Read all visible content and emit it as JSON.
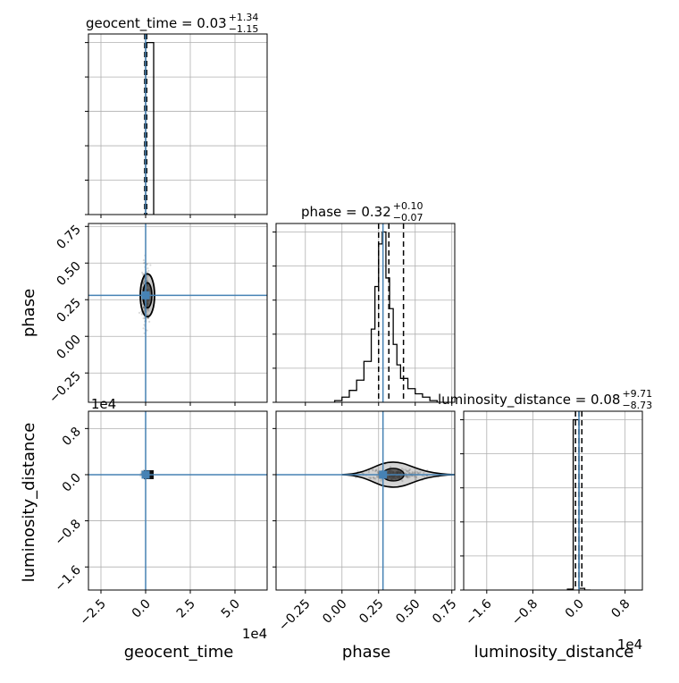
{
  "chart_data": {
    "type": "corner",
    "parameters": [
      "geocent_time",
      "phase",
      "luminosity_distance"
    ],
    "truth_color": "#4682b4",
    "contour_color": "#000000",
    "diagonal_titles": [
      {
        "name": "geocent_time = 0.03",
        "sup": "+1.34",
        "sub": "−1.15"
      },
      {
        "name": "phase = 0.32",
        "sup": "+0.10",
        "sub": "−0.07"
      },
      {
        "name": "luminosity_distance = 0.08",
        "sup": "+9.71",
        "sub": "−8.73"
      }
    ],
    "axis_labels": {
      "x": [
        "geocent_time",
        "phase",
        "luminosity_distance"
      ],
      "y": [
        "phase",
        "luminosity_distance"
      ]
    },
    "offset_labels": {
      "geocent_x": "1e4",
      "lumdist_y": "1e4",
      "lumdist_x": "1e4"
    },
    "ticks": {
      "geocent_time": {
        "values": [
          -2.5,
          0.0,
          2.5,
          5.0
        ],
        "labels": [
          "−2.5",
          "0.0",
          "2.5",
          "5.0"
        ],
        "range": [
          -3.2,
          6.8
        ]
      },
      "phase": {
        "values": [
          -0.25,
          0.0,
          0.25,
          0.5,
          0.75
        ],
        "labels": [
          "−0.25",
          "0.00",
          "0.25",
          "0.50",
          "0.75"
        ],
        "range": [
          -0.45,
          0.77
        ]
      },
      "luminosity_distance": {
        "values": [
          -1.6,
          -0.8,
          0.0,
          0.8
        ],
        "labels": [
          "−1.6",
          "−0.8",
          "0.0",
          "0.8"
        ],
        "range": [
          -2.0,
          1.1
        ]
      }
    },
    "truths": {
      "geocent_time": 0.0,
      "phase": 0.28,
      "luminosity_distance": 0.0
    },
    "quantile_lines": {
      "geocent_time": [
        -0.05,
        0.0,
        0.06
      ],
      "phase": [
        0.25,
        0.32,
        0.42
      ],
      "luminosity_distance": [
        -0.06,
        0.0,
        0.05
      ]
    },
    "histograms": {
      "geocent_time": {
        "edges": [
          0.0,
          0.45
        ],
        "counts": [
          1.0
        ]
      },
      "phase": {
        "edges": [
          -0.05,
          0.0,
          0.05,
          0.1,
          0.15,
          0.2,
          0.225,
          0.25,
          0.275,
          0.3,
          0.325,
          0.35,
          0.375,
          0.4,
          0.45,
          0.5,
          0.55,
          0.6,
          0.65,
          0.7
        ],
        "counts": [
          0.01,
          0.03,
          0.07,
          0.13,
          0.24,
          0.43,
          0.68,
          0.93,
          1.0,
          0.73,
          0.55,
          0.34,
          0.22,
          0.14,
          0.08,
          0.05,
          0.03,
          0.01,
          0.0
        ]
      },
      "luminosity_distance": {
        "edges": [
          -0.2,
          -0.1,
          0.0,
          0.1,
          0.2
        ],
        "counts": [
          0.005,
          1.0,
          0.01,
          0.0
        ]
      }
    },
    "ylim_hist": [
      0,
      1.05
    ]
  }
}
